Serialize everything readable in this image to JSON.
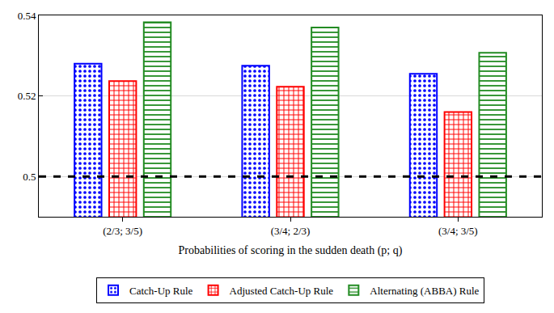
{
  "chart_data": {
    "type": "bar",
    "x_label": "Probabilities of scoring in the sudden death (p; q)",
    "categories": [
      "(2/3; 3/5)",
      "(3/4; 2/3)",
      "(3/4; 3/5)"
    ],
    "series": [
      {
        "name": "Catch-Up Rule",
        "color": "#0000ff",
        "marker": "dotted",
        "values": [
          0.528,
          0.5275,
          0.5255
        ]
      },
      {
        "name": "Adjusted Catch-Up Rule",
        "color": "#ff0000",
        "marker": "crosshatch",
        "values": [
          0.5237,
          0.5223,
          0.516
        ]
      },
      {
        "name": "Alternating (ABBA) Rule",
        "color": "#228b22",
        "marker": "striped",
        "values": [
          0.5383,
          0.537,
          0.5307
        ]
      }
    ],
    "ylim": [
      0.49,
      0.54
    ],
    "yticks": [
      0.5,
      0.52,
      0.54
    ],
    "grid": true,
    "legend": "bottom",
    "reference_line": {
      "value": 0.5,
      "line_style": "dashed",
      "color": "#000000"
    }
  }
}
